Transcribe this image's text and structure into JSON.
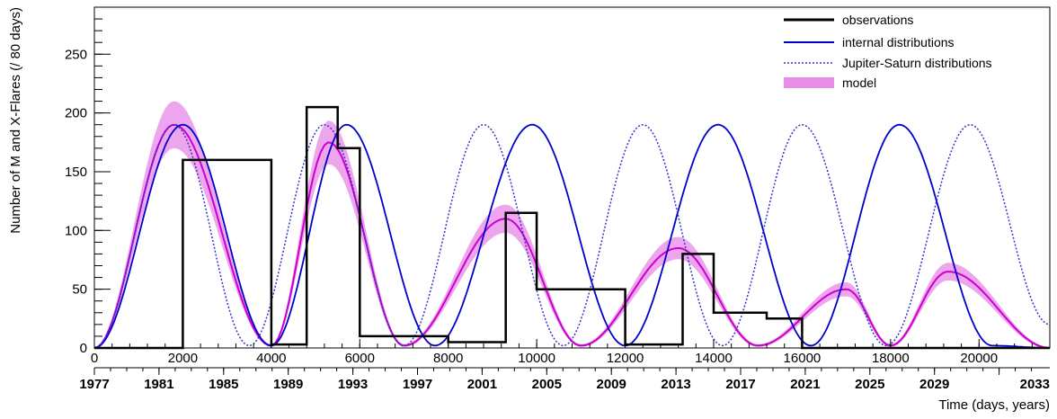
{
  "chart_data": {
    "type": "line",
    "title": "",
    "xlabel": "Time (days, years)",
    "ylabel": "Number of M and X-Flares (/ 80 days)",
    "xlim": [
      0,
      21600
    ],
    "ylim": [
      0,
      290
    ],
    "x_ticks": [
      0,
      2000,
      4000,
      6000,
      8000,
      10000,
      12000,
      14000,
      16000,
      18000,
      20000
    ],
    "y_ticks": [
      0,
      50,
      100,
      150,
      200,
      250
    ],
    "year_ticks": [
      "1977",
      "1981",
      "1985",
      "1989",
      "1993",
      "1997",
      "2001",
      "2005",
      "2009",
      "2013",
      "2017",
      "2021",
      "2025",
      "2029",
      "2033"
    ],
    "legend_position": "top-right",
    "colors": {
      "observations": "#000000",
      "internal": "#0000cc",
      "jupiter": "#3333cc",
      "model": "#cc00cc"
    },
    "series": [
      {
        "name": "observations",
        "style": "histogram",
        "x": [
          0,
          2000,
          4000,
          4800,
          5500,
          6000,
          8000,
          9300,
          10000,
          12000,
          13300,
          14000,
          15200,
          16000,
          21600
        ],
        "values": [
          0,
          160,
          3,
          205,
          170,
          10,
          5,
          115,
          50,
          3,
          80,
          30,
          25,
          0,
          0
        ]
      },
      {
        "name": "internal distributions",
        "style": "solid",
        "x": [
          0,
          2000,
          4000,
          5700,
          7700,
          9900,
          12000,
          14100,
          16200,
          18200,
          20300,
          21600
        ],
        "values": [
          0,
          190,
          2,
          190,
          2,
          190,
          2,
          190,
          2,
          190,
          2,
          0
        ]
      },
      {
        "name": "Jupiter-Saturn distributions",
        "style": "dotted",
        "x": [
          0,
          1800,
          3500,
          5200,
          7000,
          8800,
          10600,
          12400,
          14200,
          16000,
          17900,
          19800,
          21600
        ],
        "values": [
          0,
          190,
          2,
          190,
          2,
          190,
          2,
          190,
          2,
          190,
          2,
          190,
          20
        ]
      },
      {
        "name": "model",
        "style": "band",
        "x": [
          0,
          1800,
          4000,
          5300,
          7000,
          9300,
          11000,
          13200,
          15000,
          17000,
          18000,
          19300,
          21600
        ],
        "values": [
          0,
          190,
          2,
          175,
          2,
          110,
          2,
          85,
          2,
          50,
          2,
          65,
          0
        ]
      }
    ]
  }
}
